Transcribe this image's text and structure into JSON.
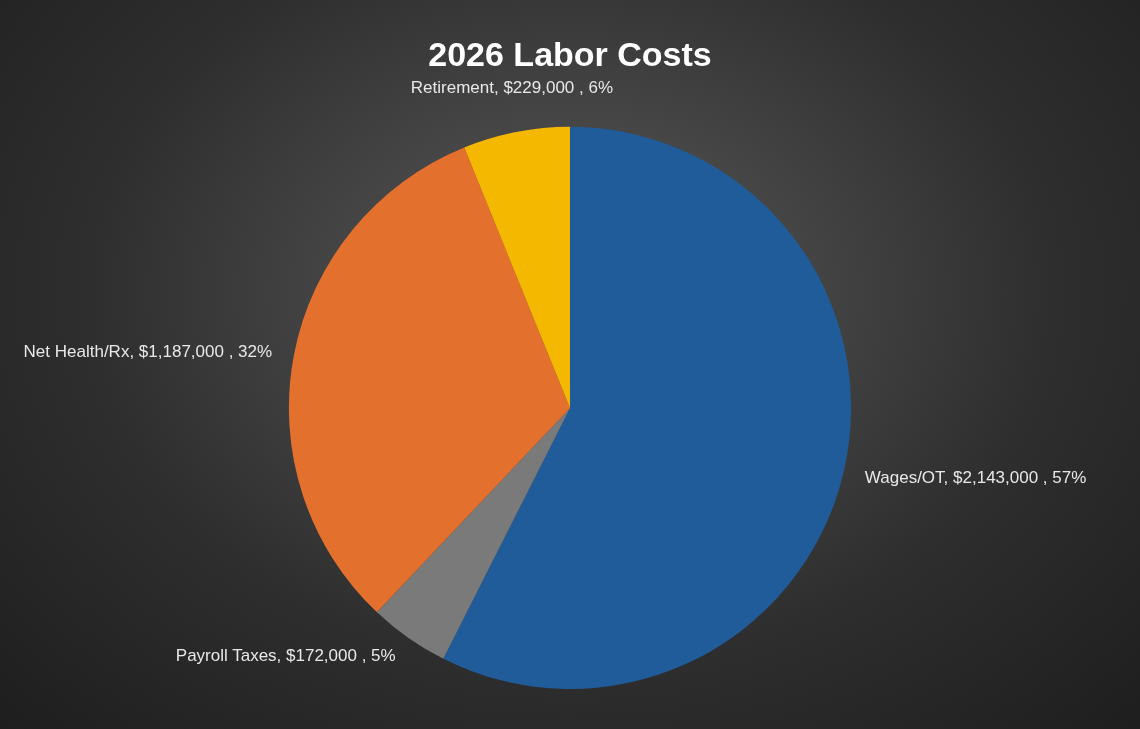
{
  "chart_data": {
    "type": "pie",
    "title": "2026 Labor Costs",
    "categories": [
      "Wages/OT",
      "Payroll Taxes",
      "Net Health/Rx",
      "Retirement"
    ],
    "values": [
      2143000,
      172000,
      1187000,
      229000
    ],
    "colors": [
      "#1f5c99",
      "#7a7a7a",
      "#e4702e",
      "#f5b800"
    ],
    "value_labels": [
      "$2,143,000 , 57%",
      "$172,000 , 5%",
      "$1,187,000 , 32%",
      "$229,000 , 6%"
    ],
    "legend": false
  }
}
